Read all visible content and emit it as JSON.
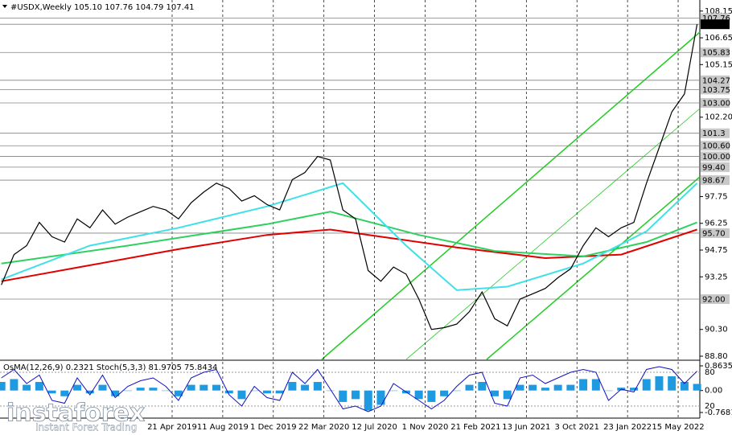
{
  "chart_data": [
    {
      "type": "line",
      "title": "#USDX,Weekly  105.10 107.76 104.79 107.41",
      "xlim": [
        "2018-04-05",
        "2022-07-02"
      ],
      "xticks": [
        {
          "value": "2019-04-21",
          "label": "21 Apr 2019"
        },
        {
          "value": "2019-08-11",
          "label": "11 Aug 2019"
        },
        {
          "value": "2019-12-01",
          "label": "1 Dec 2019"
        },
        {
          "value": "2020-03-22",
          "label": "22 Mar 2020"
        },
        {
          "value": "2020-07-12",
          "label": "12 Jul 2020"
        },
        {
          "value": "2020-11-01",
          "label": "1 Nov 2020"
        },
        {
          "value": "2021-02-21",
          "label": "21 Feb 2021"
        },
        {
          "value": "2021-06-13",
          "label": "13 Jun 2021"
        },
        {
          "value": "2021-10-03",
          "label": "3 Oct 2021"
        },
        {
          "value": "2022-01-23",
          "label": "23 Jan 2022"
        },
        {
          "value": "2022-05-15",
          "label": "15 May 2022"
        }
      ],
      "ylim": [
        88.62,
        108.77
      ],
      "yticks": [
        108.15,
        106.65,
        105.15,
        {
          "value": 102.2,
          "label": "102.20"
        },
        97.75,
        96.25,
        94.75,
        93.25,
        {
          "value": 90.3,
          "label": "90.30"
        },
        {
          "value": 88.8,
          "label": "88.80"
        }
      ],
      "levels": [
        107.76,
        107.41,
        105.83,
        104.27,
        103.75,
        {
          "value": 103,
          "label": "103.00"
        },
        101.3,
        {
          "value": 100.6,
          "label": "100.60"
        },
        {
          "value": 100,
          "label": "100.00"
        },
        {
          "value": 99.4,
          "label": "99.40"
        },
        98.67,
        {
          "value": 95.7,
          "label": "95.70"
        },
        {
          "value": 92,
          "label": "92.00"
        }
      ],
      "grid": true,
      "x": [
        "2018-04-08",
        "2018-05-06",
        "2018-06-03",
        "2018-07-01",
        "2018-07-29",
        "2018-08-26",
        "2018-09-23",
        "2018-10-21",
        "2018-11-18",
        "2018-12-16",
        "2019-01-13",
        "2019-02-10",
        "2019-03-10",
        "2019-04-07",
        "2019-05-05",
        "2019-06-02",
        "2019-06-30",
        "2019-07-28",
        "2019-08-25",
        "2019-09-22",
        "2019-10-20",
        "2019-11-17",
        "2019-12-15",
        "2020-01-12",
        "2020-02-09",
        "2020-03-08",
        "2020-04-05",
        "2020-05-03",
        "2020-05-31",
        "2020-06-28",
        "2020-07-26",
        "2020-08-23",
        "2020-09-20",
        "2020-10-18",
        "2020-11-15",
        "2020-12-13",
        "2021-01-10",
        "2021-02-07",
        "2021-03-07",
        "2021-04-04",
        "2021-05-02",
        "2021-05-30",
        "2021-06-27",
        "2021-07-25",
        "2021-08-22",
        "2021-09-19",
        "2021-10-17",
        "2021-11-14",
        "2021-12-12",
        "2022-01-09",
        "2022-02-06",
        "2022-03-06",
        "2022-04-03",
        "2022-05-01",
        "2022-05-29",
        "2022-06-26"
      ],
      "series": [
        {
          "color": "#000000",
          "values": [
            92.8,
            94.5,
            95.0,
            96.3,
            95.5,
            95.2,
            96.5,
            96.0,
            97.0,
            96.2,
            96.6,
            96.9,
            97.2,
            97.0,
            96.5,
            97.4,
            98.0,
            98.5,
            98.2,
            97.5,
            97.8,
            97.3,
            97.0,
            98.7,
            99.1,
            100.0,
            99.8,
            97.0,
            96.5,
            93.6,
            93.0,
            93.8,
            93.4,
            92.0,
            90.3,
            90.4,
            90.6,
            91.3,
            92.4,
            90.9,
            90.5,
            92.0,
            92.3,
            92.6,
            93.2,
            93.7,
            95.0,
            96.0,
            95.5,
            96.0,
            96.3,
            98.5,
            100.5,
            102.5,
            103.5,
            107.41
          ]
        }
      ],
      "moving_averages": [
        {
          "color": "#e00000",
          "x": [
            "2018-04-08",
            "2018-10-21",
            "2019-05-05",
            "2019-11-17",
            "2020-04-05",
            "2020-07-26",
            "2021-01-10",
            "2021-07-25",
            "2022-01-09",
            "2022-06-26"
          ],
          "values": [
            93.0,
            93.9,
            94.8,
            95.6,
            95.9,
            95.5,
            94.9,
            94.3,
            94.5,
            95.9
          ]
        },
        {
          "color": "#30d060",
          "x": [
            "2018-04-08",
            "2019-01-13",
            "2019-11-17",
            "2020-04-05",
            "2020-10-18",
            "2021-04-04",
            "2021-10-17",
            "2022-03-06",
            "2022-06-26"
          ],
          "values": [
            94.0,
            95.0,
            96.2,
            96.9,
            95.6,
            94.7,
            94.4,
            95.2,
            96.3
          ]
        },
        {
          "color": "#40e0e8",
          "x": [
            "2018-04-08",
            "2018-10-21",
            "2019-05-05",
            "2019-11-17",
            "2020-05-03",
            "2020-09-20",
            "2021-01-10",
            "2021-05-02",
            "2021-10-17",
            "2022-03-06",
            "2022-06-26"
          ],
          "values": [
            93.1,
            95.0,
            96.0,
            97.2,
            98.5,
            95.0,
            92.5,
            92.7,
            94.0,
            95.8,
            98.5
          ]
        }
      ]
    },
    {
      "type": "bar",
      "title": "OsMA(12,26,9) 0.2321  Stoch(5,3,3) 81.9705 75.8434",
      "xlim": [
        "2018-04-05",
        "2022-07-02"
      ],
      "ylim": [
        -0.7681,
        0.8635
      ],
      "yticks": [
        0.8635,
        {
          "value": 0,
          "label": "0.00"
        },
        -0.7681
      ],
      "y2lim": [
        0,
        100
      ],
      "y2ticks": [
        80,
        20
      ],
      "x": [
        "2018-04-08",
        "2018-05-06",
        "2018-06-03",
        "2018-07-01",
        "2018-07-29",
        "2018-08-26",
        "2018-09-23",
        "2018-10-21",
        "2018-11-18",
        "2018-12-16",
        "2019-01-13",
        "2019-02-10",
        "2019-03-10",
        "2019-04-07",
        "2019-05-05",
        "2019-06-02",
        "2019-06-30",
        "2019-07-28",
        "2019-08-25",
        "2019-09-22",
        "2019-10-20",
        "2019-11-17",
        "2019-12-15",
        "2020-01-12",
        "2020-02-09",
        "2020-03-08",
        "2020-04-05",
        "2020-05-03",
        "2020-05-31",
        "2020-06-28",
        "2020-07-26",
        "2020-08-23",
        "2020-09-20",
        "2020-10-18",
        "2020-11-15",
        "2020-12-13",
        "2021-01-10",
        "2021-02-07",
        "2021-03-07",
        "2021-04-04",
        "2021-05-02",
        "2021-05-30",
        "2021-06-27",
        "2021-07-25",
        "2021-08-22",
        "2021-09-19",
        "2021-10-17",
        "2021-11-14",
        "2021-12-12",
        "2022-01-09",
        "2022-02-06",
        "2022-03-06",
        "2022-04-03",
        "2022-05-01",
        "2022-05-29",
        "2022-06-26"
      ],
      "series": [
        {
          "color": "#1e9be0",
          "values": [
            0.3,
            0.4,
            0.2,
            0.3,
            -0.1,
            -0.2,
            0.2,
            -0.1,
            0.2,
            -0.2,
            0.0,
            0.1,
            0.1,
            0.0,
            -0.2,
            0.2,
            0.2,
            0.2,
            -0.1,
            -0.3,
            0.0,
            -0.1,
            -0.1,
            0.3,
            0.2,
            0.3,
            0.0,
            -0.4,
            -0.3,
            -0.7,
            -0.5,
            0.0,
            -0.1,
            -0.3,
            -0.4,
            -0.2,
            0.0,
            0.2,
            0.3,
            -0.2,
            -0.3,
            0.2,
            0.2,
            0.1,
            0.2,
            0.2,
            0.4,
            0.4,
            0.0,
            0.1,
            0.1,
            0.4,
            0.5,
            0.5,
            0.3,
            0.2321
          ]
        },
        {
          "color": "#1010c0",
          "axis": "y2",
          "values": [
            70,
            85,
            60,
            75,
            30,
            25,
            70,
            40,
            75,
            35,
            55,
            65,
            70,
            55,
            30,
            70,
            80,
            85,
            40,
            20,
            55,
            35,
            30,
            80,
            60,
            85,
            50,
            15,
            20,
            10,
            20,
            60,
            45,
            30,
            15,
            30,
            55,
            75,
            80,
            25,
            20,
            70,
            75,
            60,
            70,
            80,
            85,
            80,
            30,
            50,
            45,
            85,
            90,
            85,
            60,
            81.9705
          ]
        }
      ]
    }
  ],
  "watermark": {
    "brand": "instaforex",
    "tagline": "Instant Forex Trading"
  }
}
